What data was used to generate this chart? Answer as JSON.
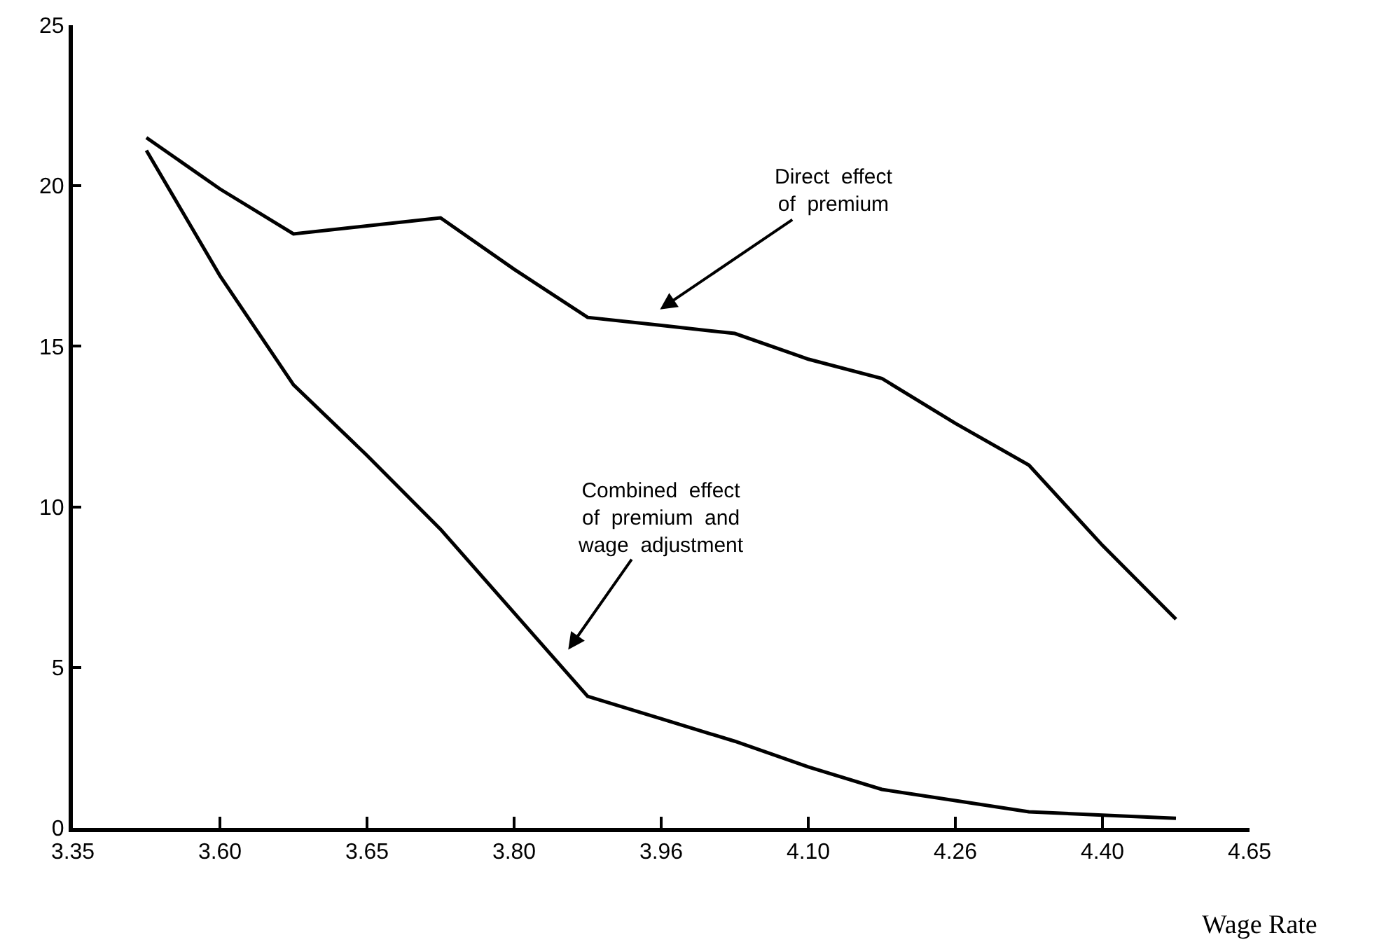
{
  "chart_data": {
    "type": "line",
    "xlabel": "Wage Rate",
    "categories": [
      "3.35",
      null,
      "3.60",
      null,
      "3.65",
      null,
      "3.80",
      null,
      "3.96",
      null,
      "4.10",
      null,
      "4.26",
      null,
      "4.40",
      null,
      "4.65"
    ],
    "ylim": [
      0,
      25
    ],
    "yticks": [
      0,
      5,
      10,
      15,
      20,
      25
    ],
    "series": [
      {
        "color": "#000000",
        "values": [
          null,
          21.5,
          19.9,
          18.5,
          18.75,
          19.0,
          17.4,
          15.9,
          15.65,
          15.4,
          14.6,
          14.0,
          12.6,
          11.3,
          8.8,
          6.5,
          null
        ]
      },
      {
        "color": "#000000",
        "values": [
          null,
          21.1,
          17.2,
          13.8,
          11.6,
          9.3,
          6.7,
          4.1,
          3.4,
          2.7,
          1.9,
          1.2,
          0.85,
          0.5,
          0.4,
          0.3,
          null
        ]
      }
    ],
    "annotations": [
      "Direct  effect\nof  premium",
      "Combined  effect\nof  premium  and\nwage  adjustment"
    ],
    "marker": "none",
    "line_style": "solid"
  }
}
